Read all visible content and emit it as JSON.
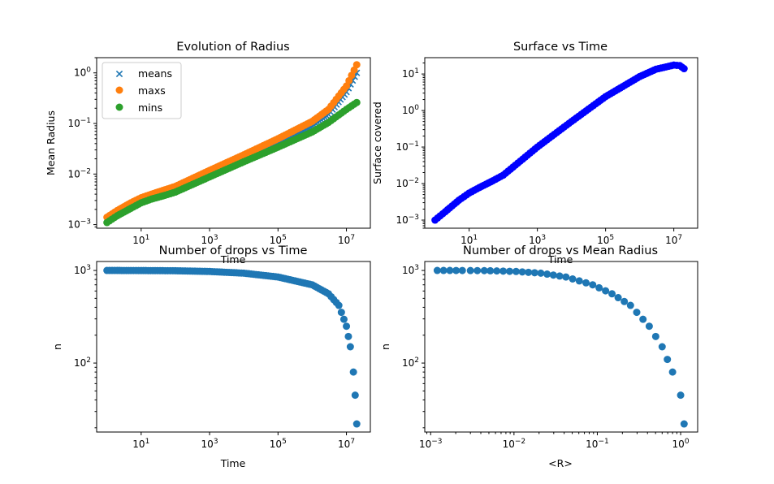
{
  "colors": {
    "means": "#1f77b4",
    "maxs": "#ff7f0e",
    "mins": "#2ca02c",
    "surface": "#0000ff",
    "drops": "#1f77b4"
  },
  "chart_data": [
    {
      "id": "radius",
      "type": "scatter",
      "title": "Evolution of Radius",
      "xlabel": "Time",
      "ylabel": "Mean Radius",
      "xscale": "log",
      "yscale": "log",
      "xlim": [
        0.5,
        50000000
      ],
      "ylim": [
        0.00085,
        2.0
      ],
      "xticks": [
        {
          "v": 10,
          "m": "1"
        },
        {
          "v": 1000,
          "m": "3"
        },
        {
          "v": 100000,
          "m": "5"
        },
        {
          "v": 10000000,
          "m": "7"
        }
      ],
      "yticks": [
        {
          "v": 0.001,
          "m": "−3"
        },
        {
          "v": 0.01,
          "m": "−2"
        },
        {
          "v": 0.1,
          "m": "−1"
        },
        {
          "v": 1,
          "m": "0"
        }
      ],
      "grid": false,
      "legend": "upper-left",
      "legend_entries": [
        "means",
        "maxs",
        "mins"
      ],
      "series": [
        {
          "name": "means",
          "marker": "x",
          "color": "#1f77b4",
          "x": [
            1,
            2,
            5,
            10,
            20,
            50,
            100,
            1000,
            10000,
            100000,
            1000000,
            3000000,
            10000000,
            20000000
          ],
          "y": [
            0.0012,
            0.0017,
            0.0024,
            0.003,
            0.0036,
            0.0044,
            0.0052,
            0.0106,
            0.021,
            0.042,
            0.088,
            0.15,
            0.42,
            1.0
          ]
        },
        {
          "name": "maxs",
          "marker": "o",
          "color": "#ff7f0e",
          "x": [
            1,
            2,
            5,
            10,
            20,
            50,
            100,
            1000,
            10000,
            100000,
            1000000,
            3000000,
            10000000,
            20000000
          ],
          "y": [
            0.0014,
            0.0019,
            0.0027,
            0.0034,
            0.004,
            0.0049,
            0.0057,
            0.0118,
            0.024,
            0.05,
            0.11,
            0.19,
            0.55,
            1.45
          ]
        },
        {
          "name": "mins",
          "marker": "o",
          "color": "#2ca02c",
          "x": [
            1,
            2,
            5,
            10,
            20,
            50,
            100,
            1000,
            10000,
            100000,
            1000000,
            3000000,
            10000000,
            20000000
          ],
          "y": [
            0.0011,
            0.0015,
            0.0021,
            0.0027,
            0.0032,
            0.0038,
            0.0044,
            0.0088,
            0.0175,
            0.034,
            0.068,
            0.105,
            0.19,
            0.26
          ]
        }
      ]
    },
    {
      "id": "surface",
      "type": "scatter",
      "title": "Surface vs Time",
      "xlabel": "Time",
      "ylabel": "Surface covered",
      "xscale": "log",
      "yscale": "log",
      "xlim": [
        0.5,
        50000000
      ],
      "ylim": [
        0.0006,
        28
      ],
      "xticks": [
        {
          "v": 10,
          "m": "1"
        },
        {
          "v": 1000,
          "m": "3"
        },
        {
          "v": 100000,
          "m": "5"
        },
        {
          "v": 10000000,
          "m": "7"
        }
      ],
      "yticks": [
        {
          "v": 0.001,
          "m": "−3"
        },
        {
          "v": 0.01,
          "m": "−2"
        },
        {
          "v": 0.1,
          "m": "−1"
        },
        {
          "v": 1,
          "m": "0"
        },
        {
          "v": 10,
          "m": "1"
        }
      ],
      "grid": false,
      "series": [
        {
          "name": "",
          "marker": "o",
          "color": "#0000ff",
          "x": [
            1,
            2,
            5,
            10,
            20,
            50,
            100,
            1000,
            10000,
            100000,
            1000000,
            3000000,
            10000000,
            15000000,
            20000000
          ],
          "y": [
            0.001,
            0.0017,
            0.0035,
            0.0055,
            0.0078,
            0.012,
            0.017,
            0.1,
            0.5,
            2.4,
            8.5,
            13.5,
            17.5,
            17.0,
            14.0
          ]
        }
      ]
    },
    {
      "id": "drops-time",
      "type": "scatter",
      "title": "Number of drops vs Time",
      "xlabel": "Time",
      "ylabel": "n",
      "xscale": "log",
      "yscale": "log",
      "xlim": [
        0.5,
        50000000
      ],
      "ylim": [
        18,
        1250
      ],
      "xticks": [
        {
          "v": 10,
          "m": "1"
        },
        {
          "v": 1000,
          "m": "3"
        },
        {
          "v": 100000,
          "m": "5"
        },
        {
          "v": 10000000,
          "m": "7"
        }
      ],
      "yticks": [
        {
          "v": 100,
          "m": "2"
        },
        {
          "v": 1000,
          "m": "3"
        }
      ],
      "grid": false,
      "series": [
        {
          "name": "",
          "marker": "o",
          "color": "#1f77b4",
          "x": [
            1,
            2,
            5,
            10,
            30,
            100,
            1000,
            10000,
            100000,
            1000000,
            3000000,
            6000000,
            10000000,
            13000000,
            16000000,
            18000000,
            20000000
          ],
          "y": [
            1000,
            1000,
            999,
            998,
            996,
            993,
            975,
            935,
            850,
            700,
            560,
            420,
            250,
            150,
            80,
            45,
            22
          ]
        }
      ]
    },
    {
      "id": "drops-radius",
      "type": "scatter",
      "title": "Number of drops vs Mean Radius",
      "xlabel": "<R>",
      "ylabel": "n",
      "xscale": "log",
      "yscale": "log",
      "xlim": [
        0.00085,
        1.6
      ],
      "ylim": [
        18,
        1250
      ],
      "xticks": [
        {
          "v": 0.001,
          "m": "−3"
        },
        {
          "v": 0.01,
          "m": "−2"
        },
        {
          "v": 0.1,
          "m": "−1"
        },
        {
          "v": 1,
          "m": "0"
        }
      ],
      "yticks": [
        {
          "v": 100,
          "m": "2"
        },
        {
          "v": 1000,
          "m": "3"
        }
      ],
      "grid": false,
      "series": [
        {
          "name": "",
          "marker": "o",
          "color": "#1f77b4",
          "x": [
            0.0012,
            0.0017,
            0.0024,
            0.003,
            0.0044,
            0.0052,
            0.0106,
            0.021,
            0.042,
            0.088,
            0.15,
            0.25,
            0.42,
            0.6,
            0.8,
            1.0,
            1.1
          ],
          "y": [
            1000,
            1000,
            999,
            998,
            996,
            993,
            975,
            935,
            850,
            700,
            560,
            420,
            250,
            150,
            80,
            45,
            22
          ]
        }
      ]
    }
  ]
}
